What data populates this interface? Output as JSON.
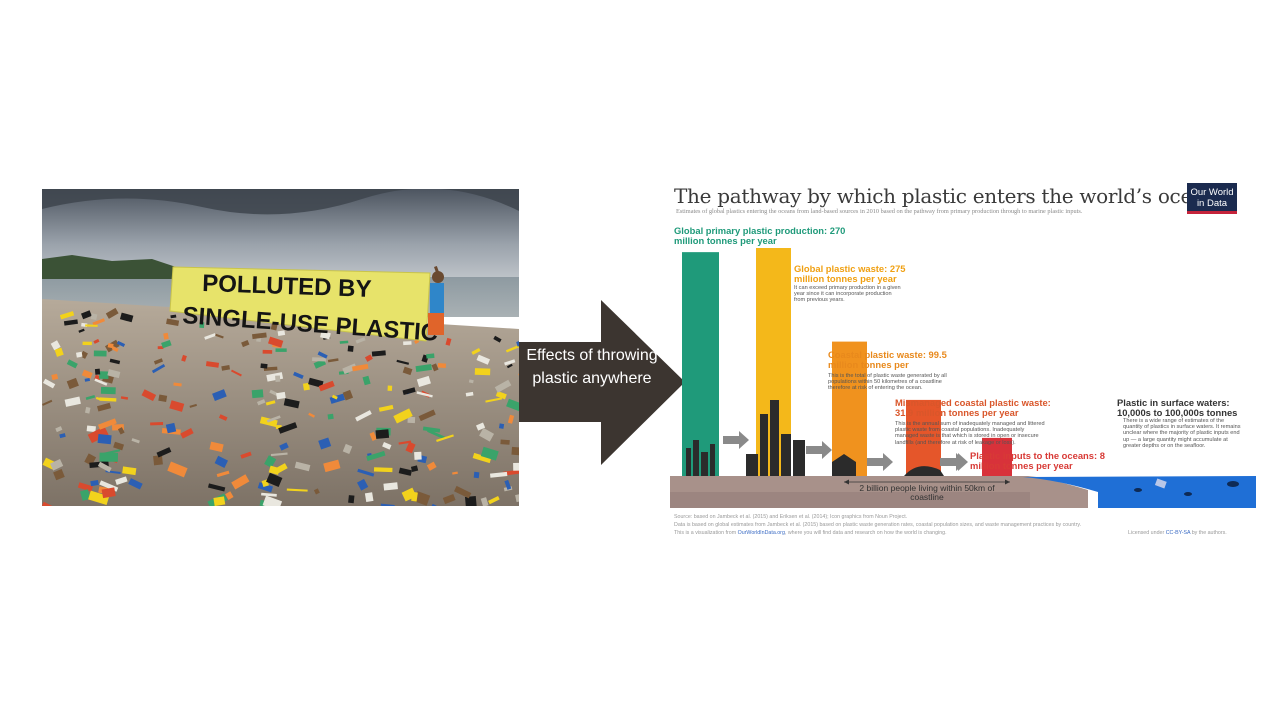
{
  "photo": {
    "banner_line1": "POLLUTED BY",
    "banner_line2": "SINGLE-USE PLASTIC"
  },
  "arrow": {
    "label": "Effects of throwing plastic anywhere",
    "color": "#3c3530"
  },
  "infographic": {
    "title": "The pathway by which plastic enters the world’s oceans",
    "subtitle": "Estimates of global plastics entering the oceans from land-based sources in 2010 based on the pathway from primary production through to marine plastic inputs.",
    "logo_line1": "Our World",
    "logo_line2": "in Data",
    "coastline_label": "2 billion people living within 50km of coastline",
    "footnotes": {
      "source": "Source: based on Jambeck et al. (2015) and Eriksen et al. (2014); Icon graphics from Noun Project.",
      "data": "Data is based on global estimates from Jambeck et al. (2015) based on plastic waste generation rates, coastal population sizes, and waste management practices by country.",
      "viz_prefix": "This is a visualization from ",
      "viz_link": "OurWorldInData.org",
      "viz_suffix": ", where you will find data and research on how the world is changing.",
      "license_prefix": "Licensed under ",
      "license_link": "CC-BY-SA",
      "license_suffix": " by the authors."
    }
  },
  "chart_data": {
    "type": "bar",
    "title": "The pathway by which plastic enters the world’s oceans",
    "categories": [
      "Global primary plastic production",
      "Global plastic waste",
      "Coastal plastic waste",
      "Mismanaged coastal plastic waste",
      "Plastic inputs to the oceans",
      "Plastic in surface waters"
    ],
    "labels": [
      "Global primary plastic production: 270 million tonnes per year",
      "Global plastic waste: 275 million tonnes per year",
      "Coastal plastic waste: 99.5 million tonnes per",
      "Mismanaged coastal plastic waste: 31.9 million tonnes per year",
      "Plastic inputs to the oceans: 8 million tonnes per year",
      "Plastic in surface waters: 10,000s to 100,000s tonnes"
    ],
    "values": [
      270,
      275,
      99.5,
      31.9,
      8,
      0.1
    ],
    "units": "million tonnes per year",
    "descriptions": {
      "waste": "It can exceed primary production in a given year since it can incorporate production from previous years.",
      "coastal": "This is the total of plastic waste generated by all populations within 50 kilometres of a coastline therefore at risk of entering the ocean.",
      "mismanaged": "This is the annual sum of inadequately managed and littered plastic waste from coastal populations. Inadequately managed waste is that which is stored in open or insecure landfills (and therefore at risk of leakage or loss).",
      "surface": "There is a wide range of estimates of the quantity of plastics in surface waters. It remains unclear where the majority of plastic inputs end up — a large quantity might accumulate at greater depths or on the seafloor."
    },
    "colors": [
      "#1f9a7a",
      "#f4b81a",
      "#f0921e",
      "#e5562a",
      "#d8323a",
      "#2a64c8"
    ]
  }
}
